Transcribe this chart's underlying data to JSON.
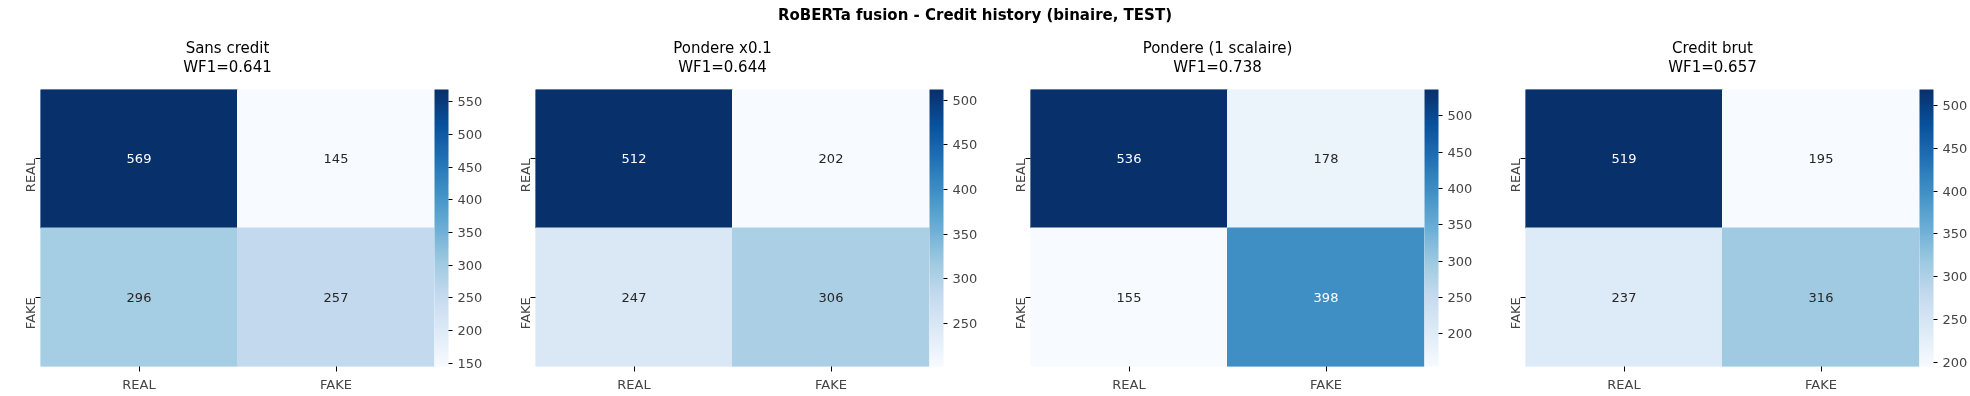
{
  "chart_data": [
    {
      "type": "heatmap",
      "title": "Sans credit\nWF1=0.641",
      "annotations": [
        "RoBERTa fusion - Credit history (binaire, TEST)"
      ],
      "categories": [
        "REAL",
        "FAKE"
      ],
      "y_categories": [
        "REAL",
        "FAKE"
      ],
      "cells": [
        [
          569,
          145
        ],
        [
          296,
          257
        ]
      ],
      "clim": [
        145,
        569
      ],
      "cticks": [
        150,
        200,
        250,
        300,
        350,
        400,
        450,
        500,
        550
      ],
      "data_labels": true
    },
    {
      "type": "heatmap",
      "title": "Pondere x0.1\nWF1=0.644",
      "categories": [
        "REAL",
        "FAKE"
      ],
      "y_categories": [
        "REAL",
        "FAKE"
      ],
      "cells": [
        [
          512,
          202
        ],
        [
          247,
          306
        ]
      ],
      "clim": [
        202,
        512
      ],
      "cticks": [
        250,
        300,
        350,
        400,
        450,
        500
      ],
      "data_labels": true
    },
    {
      "type": "heatmap",
      "title": "Pondere (1 scalaire)\nWF1=0.738",
      "categories": [
        "REAL",
        "FAKE"
      ],
      "y_categories": [
        "REAL",
        "FAKE"
      ],
      "cells": [
        [
          536,
          178
        ],
        [
          155,
          398
        ]
      ],
      "clim": [
        155,
        536
      ],
      "cticks": [
        200,
        250,
        300,
        350,
        400,
        450,
        500
      ],
      "data_labels": true
    },
    {
      "type": "heatmap",
      "title": "Credit brut\nWF1=0.657",
      "categories": [
        "REAL",
        "FAKE"
      ],
      "y_categories": [
        "REAL",
        "FAKE"
      ],
      "cells": [
        [
          519,
          195
        ],
        [
          237,
          316
        ]
      ],
      "clim": [
        195,
        519
      ],
      "cticks": [
        200,
        250,
        300,
        350,
        400,
        450,
        500
      ],
      "data_labels": true
    }
  ]
}
